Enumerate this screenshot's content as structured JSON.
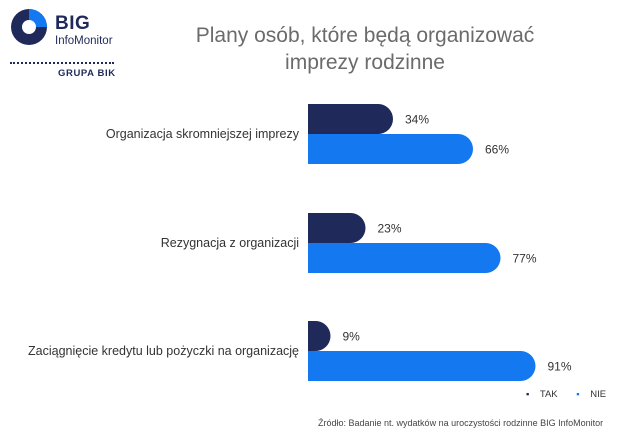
{
  "logo": {
    "big": "BIG",
    "info": "InfoMonitor",
    "grupa": "GRUPA BIK"
  },
  "colors": {
    "tak": "#1f2a5a",
    "nie": "#1478f0",
    "label": "#333333",
    "title": "#6b6b6b"
  },
  "chart_data": {
    "type": "bar",
    "orientation": "horizontal",
    "title": "Plany osób, które będą organizować imprezy rodzinne",
    "categories": [
      "Organizacja skromniejszej imprezy",
      "Rezygnacja z organizacji",
      "Zaciągnięcie kredytu lub pożyczki na organizację"
    ],
    "series": [
      {
        "name": "TAK",
        "values": [
          34,
          23,
          9
        ],
        "labels": [
          "34%",
          "23%",
          "9%"
        ]
      },
      {
        "name": "NIE",
        "values": [
          66,
          77,
          91
        ],
        "labels": [
          "66%",
          "77%",
          "91%"
        ]
      }
    ],
    "xlim": [
      0,
      100
    ],
    "legend_position": "bottom-right"
  },
  "legend": {
    "tak": "TAK",
    "nie": "NIE"
  },
  "source": "Źródło: Badanie nt. wydatków na uroczystości rodzinne BIG InfoMonitor"
}
